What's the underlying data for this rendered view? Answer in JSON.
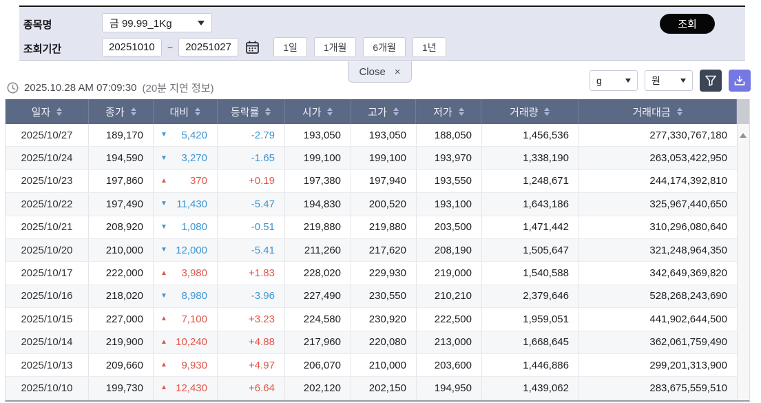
{
  "filters": {
    "item_label": "종목명",
    "item_value": "금 99.99_1Kg",
    "period_label": "조회기간",
    "date_from": "20251010",
    "date_tilde": "~",
    "date_to": "20251027",
    "range_buttons": [
      "1일",
      "1개월",
      "6개월",
      "1년"
    ],
    "search_button": "조회"
  },
  "tab": {
    "label": "Close",
    "close": "×"
  },
  "info": {
    "timestamp": "2025.10.28 AM 07:09:30",
    "delay_note": "(20분 지연 정보)",
    "unit_weight": "g",
    "unit_currency": "원"
  },
  "arrows": {
    "up": "▲",
    "down": "▼"
  },
  "colors": {
    "up": "#e0574b",
    "down": "#3d96d2",
    "header_bg": "#5b6985",
    "filter_bg": "#3c4657",
    "download_bg": "#7577e2"
  },
  "table": {
    "columns": [
      "일자",
      "종가",
      "대비",
      "등락률",
      "시가",
      "고가",
      "저가",
      "거래량",
      "거래대금"
    ],
    "rows": [
      {
        "date": "2025/10/27",
        "close": "189,170",
        "dir": "down",
        "change": "5,420",
        "rate": "-2.79",
        "open": "193,050",
        "high": "193,050",
        "low": "188,050",
        "volume": "1,456,536",
        "value": "277,330,767,180"
      },
      {
        "date": "2025/10/24",
        "close": "194,590",
        "dir": "down",
        "change": "3,270",
        "rate": "-1.65",
        "open": "199,100",
        "high": "199,100",
        "low": "193,970",
        "volume": "1,338,190",
        "value": "263,053,422,950"
      },
      {
        "date": "2025/10/23",
        "close": "197,860",
        "dir": "up",
        "change": "370",
        "rate": "+0.19",
        "open": "197,380",
        "high": "197,940",
        "low": "193,550",
        "volume": "1,248,671",
        "value": "244,174,392,810"
      },
      {
        "date": "2025/10/22",
        "close": "197,490",
        "dir": "down",
        "change": "11,430",
        "rate": "-5.47",
        "open": "194,830",
        "high": "200,520",
        "low": "193,100",
        "volume": "1,643,186",
        "value": "325,967,440,650"
      },
      {
        "date": "2025/10/21",
        "close": "208,920",
        "dir": "down",
        "change": "1,080",
        "rate": "-0.51",
        "open": "219,880",
        "high": "219,880",
        "low": "203,500",
        "volume": "1,471,442",
        "value": "310,296,080,640"
      },
      {
        "date": "2025/10/20",
        "close": "210,000",
        "dir": "down",
        "change": "12,000",
        "rate": "-5.41",
        "open": "211,260",
        "high": "217,620",
        "low": "208,190",
        "volume": "1,505,647",
        "value": "321,248,964,350"
      },
      {
        "date": "2025/10/17",
        "close": "222,000",
        "dir": "up",
        "change": "3,980",
        "rate": "+1.83",
        "open": "228,020",
        "high": "229,930",
        "low": "219,000",
        "volume": "1,540,588",
        "value": "342,649,369,820"
      },
      {
        "date": "2025/10/16",
        "close": "218,020",
        "dir": "down",
        "change": "8,980",
        "rate": "-3.96",
        "open": "227,490",
        "high": "230,550",
        "low": "210,210",
        "volume": "2,379,646",
        "value": "528,268,243,690"
      },
      {
        "date": "2025/10/15",
        "close": "227,000",
        "dir": "up",
        "change": "7,100",
        "rate": "+3.23",
        "open": "224,580",
        "high": "230,920",
        "low": "222,500",
        "volume": "1,959,051",
        "value": "441,902,644,500"
      },
      {
        "date": "2025/10/14",
        "close": "219,900",
        "dir": "up",
        "change": "10,240",
        "rate": "+4.88",
        "open": "217,960",
        "high": "220,080",
        "low": "213,000",
        "volume": "1,668,645",
        "value": "362,061,759,490"
      },
      {
        "date": "2025/10/13",
        "close": "209,660",
        "dir": "up",
        "change": "9,930",
        "rate": "+4.97",
        "open": "206,070",
        "high": "210,000",
        "low": "203,600",
        "volume": "1,446,886",
        "value": "299,201,313,900"
      },
      {
        "date": "2025/10/10",
        "close": "199,730",
        "dir": "up",
        "change": "12,430",
        "rate": "+6.64",
        "open": "202,120",
        "high": "202,150",
        "low": "194,950",
        "volume": "1,439,062",
        "value": "283,675,559,510"
      }
    ]
  }
}
